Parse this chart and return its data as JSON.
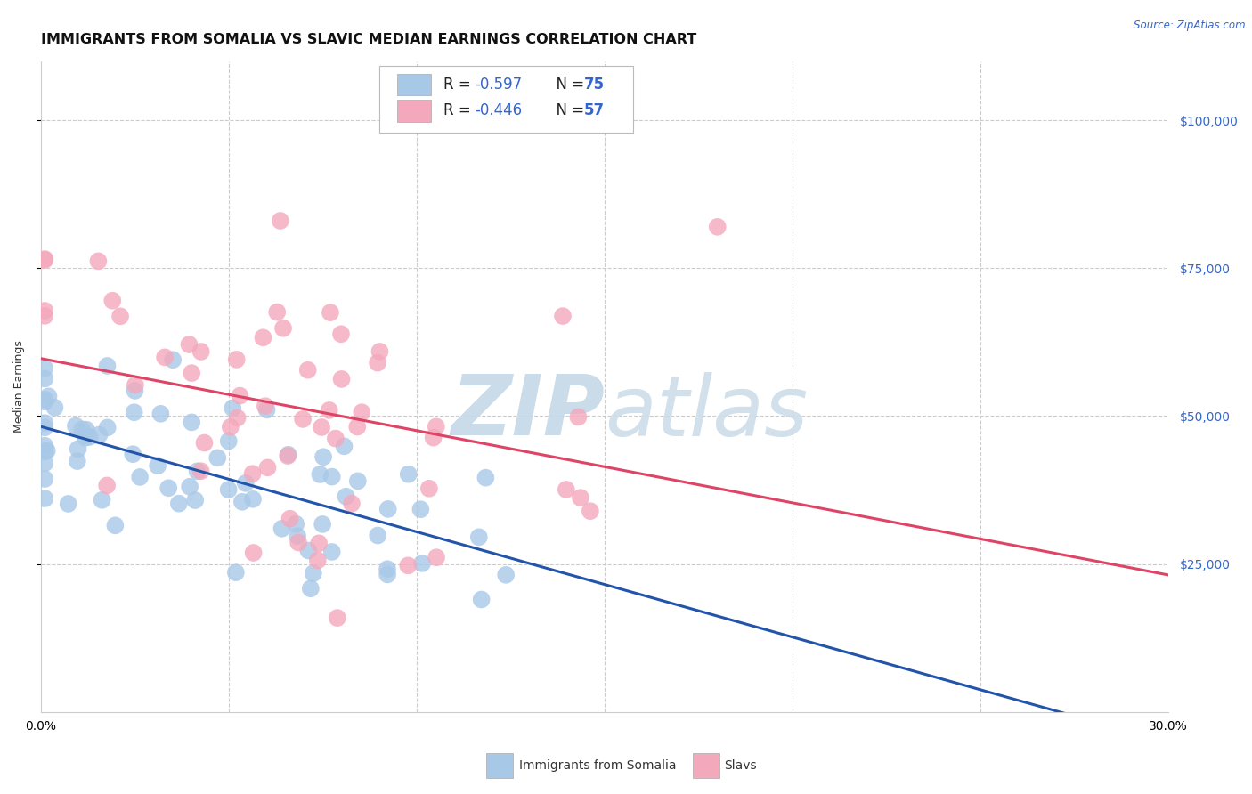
{
  "title": "IMMIGRANTS FROM SOMALIA VS SLAVIC MEDIAN EARNINGS CORRELATION CHART",
  "source": "Source: ZipAtlas.com",
  "ylabel": "Median Earnings",
  "ytick_labels": [
    "$25,000",
    "$50,000",
    "$75,000",
    "$100,000"
  ],
  "ytick_values": [
    25000,
    50000,
    75000,
    100000
  ],
  "xlim": [
    0.0,
    0.3
  ],
  "ylim": [
    0,
    110000
  ],
  "somalia_color": "#a8c8e8",
  "slavs_color": "#f4a8bc",
  "line_somalia_color": "#2255aa",
  "line_slavs_color": "#dd4466",
  "watermark_zip_color": "#b8cfe0",
  "watermark_atlas_color": "#c8dce8",
  "background_color": "#ffffff",
  "grid_color": "#cccccc",
  "title_fontsize": 11.5,
  "axis_label_fontsize": 9,
  "tick_fontsize": 10,
  "legend_fontsize": 12
}
